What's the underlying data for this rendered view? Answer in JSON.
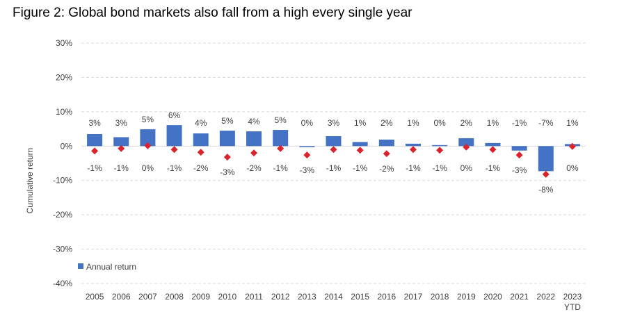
{
  "title": "Figure 2: Global bond markets also fall from a high every single year",
  "chart_data": {
    "type": "bar",
    "title": "Figure 2: Global bond markets also fall from a high every single year",
    "xlabel": "",
    "ylabel": "Cumulative return",
    "ylim": [
      -40,
      30
    ],
    "yticks": [
      30,
      20,
      10,
      0,
      -10,
      -20,
      -30,
      -40
    ],
    "ytick_labels": [
      "30%",
      "20%",
      "10%",
      "0%",
      "-10%",
      "-20%",
      "-30%",
      "-40%"
    ],
    "grid": "horizontal dashed",
    "legend_position": "bottom-left",
    "categories": [
      "2005",
      "2006",
      "2007",
      "2008",
      "2009",
      "2010",
      "2011",
      "2012",
      "2013",
      "2014",
      "2015",
      "2016",
      "2017",
      "2018",
      "2019",
      "2020",
      "2021",
      "2022",
      "2023"
    ],
    "category_sublabels": [
      "",
      "",
      "",
      "",
      "",
      "",
      "",
      "",
      "",
      "",
      "",
      "",
      "",
      "",
      "",
      "",
      "",
      "",
      "YTD"
    ],
    "series": [
      {
        "name": "Annual return",
        "kind": "bar",
        "color": "#4472C4",
        "values": [
          3.5,
          2.6,
          4.9,
          6.1,
          3.7,
          4.5,
          4.3,
          4.7,
          -0.3,
          2.9,
          1.2,
          1.9,
          0.7,
          0.3,
          2.3,
          0.9,
          -1.3,
          -7.3,
          0.6
        ],
        "labels": [
          "3%",
          "3%",
          "5%",
          "6%",
          "4%",
          "5%",
          "4%",
          "5%",
          "0%",
          "3%",
          "1%",
          "2%",
          "1%",
          "0%",
          "2%",
          "1%",
          "-1%",
          "-7%",
          "1%"
        ]
      },
      {
        "kind": "marker",
        "color": "#D9232D",
        "marker": "diamond",
        "values": [
          -1.4,
          -0.7,
          0.1,
          -1.0,
          -1.8,
          -3.2,
          -2.0,
          -0.7,
          -2.6,
          -1.0,
          -1.2,
          -2.2,
          -1.0,
          -1.2,
          -0.3,
          -1.0,
          -2.6,
          -8.2,
          -0.1
        ],
        "labels": [
          "-1%",
          "-1%",
          "0%",
          "-1%",
          "-2%",
          "-3%",
          "-2%",
          "-1%",
          "-3%",
          "-1%",
          "-1%",
          "-2%",
          "-1%",
          "-1%",
          "0%",
          "-1%",
          "-3%",
          "-8%",
          "0%"
        ]
      }
    ]
  }
}
